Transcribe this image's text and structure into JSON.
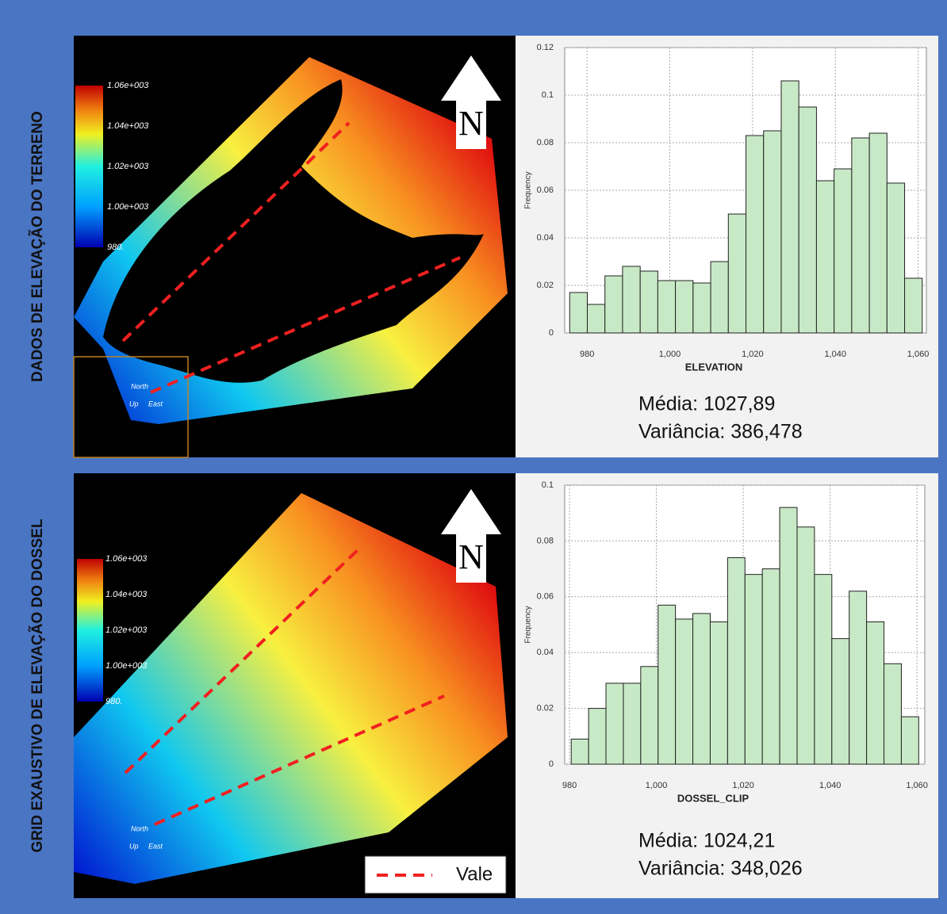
{
  "chart_data": [
    {
      "type": "histogram",
      "xlabel": "ELEVATION",
      "ylabel": "Frequency",
      "bins": [
        975.8,
        980.06,
        984.32,
        988.58,
        992.84,
        997.1,
        1001.36,
        1005.62,
        1009.88,
        1014.14,
        1018.4,
        1022.66,
        1026.92,
        1031.18,
        1035.44,
        1039.7,
        1043.96,
        1048.22,
        1052.48,
        1056.74,
        1061
      ],
      "values": [
        0.017,
        0.012,
        0.024,
        0.028,
        0.026,
        0.022,
        0.022,
        0.021,
        0.03,
        0.05,
        0.083,
        0.085,
        0.106,
        0.095,
        0.064,
        0.069,
        0.082,
        0.084,
        0.063,
        0.023
      ],
      "color": "#c8e9c6",
      "xlim": [
        974.6,
        1062
      ],
      "ylim": [
        0,
        0.12
      ],
      "xticks": [
        980,
        {
          "value": 1000,
          "label": "1,000"
        },
        {
          "value": 1020,
          "label": "1,020"
        },
        {
          "value": 1040,
          "label": "1,040"
        },
        {
          "value": 1060,
          "label": "1,060"
        }
      ],
      "yticks": [
        0,
        0.02,
        0.04,
        0.06,
        0.08,
        0.1,
        0.12
      ],
      "grid": true,
      "annotations": [
        "Média: 1027,89",
        "Variância: 386,478"
      ]
    },
    {
      "type": "histogram",
      "xlabel": "DOSSEL_CLIP",
      "ylabel": "Frequency",
      "bins": [
        980.4,
        984.4,
        988.4,
        992.4,
        996.4,
        1000.4,
        1004.4,
        1008.4,
        1012.4,
        1016.4,
        1020.4,
        1024.4,
        1028.4,
        1032.4,
        1036.4,
        1040.4,
        1044.4,
        1048.4,
        1052.4,
        1056.4,
        1060.4
      ],
      "values": [
        0.009,
        0.02,
        0.029,
        0.029,
        0.035,
        0.057,
        0.052,
        0.054,
        0.051,
        0.074,
        0.068,
        0.07,
        0.092,
        0.085,
        0.068,
        0.045,
        0.062,
        0.051,
        0.036,
        0.017
      ],
      "color": "#c8e9c6",
      "xlim": [
        978.9,
        1061.8
      ],
      "ylim": [
        0,
        0.1
      ],
      "xticks": [
        980,
        {
          "value": 1000,
          "label": "1,000"
        },
        {
          "value": 1020,
          "label": "1,020"
        },
        {
          "value": 1040,
          "label": "1,040"
        },
        {
          "value": 1060,
          "label": "1,060"
        }
      ],
      "yticks": [
        0,
        0.02,
        0.04,
        0.06,
        0.08,
        0.1
      ],
      "grid": true,
      "annotations": [
        "Média: 1024,21",
        "Variância: 348,026"
      ]
    }
  ],
  "panels": [
    {
      "label": "DADOS DE ELEVAÇÃO DO TERRENO",
      "colorbar_labels": [
        "1.06e+003",
        "1.04e+003",
        "1.02e+003",
        "1.00e+003",
        "980."
      ],
      "compass": "N",
      "orientation": [
        "North",
        "Up",
        "East"
      ]
    },
    {
      "label": "GRID EXAUSTIVO DE ELEVAÇÃO DO DOSSEL",
      "colorbar_labels": [
        "1.06e+003",
        "1.04e+003",
        "1.02e+003",
        "1.00e+003",
        "980."
      ],
      "compass": "N",
      "orientation": [
        "North",
        "Up",
        "East"
      ]
    }
  ],
  "legend": {
    "label": "Vale"
  }
}
